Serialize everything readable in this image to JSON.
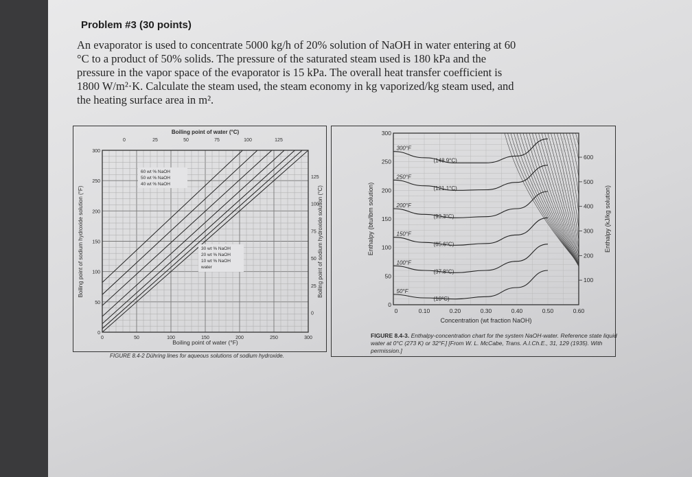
{
  "problem": {
    "title": "Problem #3 (30 points)",
    "text_lines": [
      "An evaporator is used to concentrate 5000 kg/h of 20% solution of NaOH in water entering at 60",
      "°C to a product of 50% solids. The pressure of the saturated steam used is 180 kPa and the",
      "pressure in the vapor space of the evaporator is 15 kPa. The overall heat transfer coefficient is",
      "1800 W/m²·K. Calculate the steam used, the steam economy in kg vaporized/kg steam used, and",
      "the heating surface area in m²."
    ]
  },
  "chart_data": [
    {
      "type": "line",
      "title": "Boiling point of water (°C)",
      "xlabel": "Boiling point of water (°F)",
      "ylabel": "Boiling point of sodium hydroxide solution (°F)",
      "y2label": "Boiling point of sodium hydroxide solution (°C)",
      "xlim": [
        0,
        300
      ],
      "ylim": [
        0,
        300
      ],
      "x_ticks": [
        "0",
        "50",
        "100",
        "150",
        "200",
        "250",
        "300"
      ],
      "y_ticks": [
        "0",
        "50",
        "100",
        "150",
        "200",
        "250",
        "300"
      ],
      "top_ticks": [
        "0",
        "25",
        "50",
        "75",
        "100",
        "125"
      ],
      "right_ticks": [
        "0",
        "25",
        "50",
        "75",
        "100",
        "125"
      ],
      "grid": true,
      "legend_upper": [
        "60 wt % NaOH",
        "50 wt % NaOH",
        "40 wt % NaOH"
      ],
      "legend_lower": [
        "30 wt % NaOH",
        "20 wt % NaOH",
        "10 wt % NaOH",
        "water"
      ],
      "series": [
        {
          "name": "water",
          "x": [
            0,
            300
          ],
          "y": [
            0,
            300
          ]
        },
        {
          "name": "10 wt % NaOH",
          "x": [
            0,
            300
          ],
          "y": [
            6,
            309
          ]
        },
        {
          "name": "20 wt % NaOH",
          "x": [
            0,
            300
          ],
          "y": [
            14,
            320
          ]
        },
        {
          "name": "30 wt % NaOH",
          "x": [
            0,
            300
          ],
          "y": [
            26,
            336
          ]
        },
        {
          "name": "40 wt % NaOH",
          "x": [
            0,
            300
          ],
          "y": [
            44,
            355
          ]
        },
        {
          "name": "50 wt % NaOH",
          "x": [
            0,
            300
          ],
          "y": [
            62,
            378
          ]
        },
        {
          "name": "60 wt % NaOH",
          "x": [
            0,
            300
          ],
          "y": [
            82,
            402
          ]
        }
      ],
      "caption_label": "FIGURE 8.4-2",
      "caption": "Dühring lines for aqueous solutions of sodium hydroxide."
    },
    {
      "type": "line",
      "xlabel": "Concentration (wt fraction NaOH)",
      "ylabel": "Enthalpy (btu/lbm solution)",
      "y2label": "Enthalpy (kJ/kg solution)",
      "xlim": [
        0,
        0.6
      ],
      "ylim": [
        0,
        300
      ],
      "x_ticks": [
        "0",
        "0.10",
        "0.20",
        "0.30",
        "0.40",
        "0.50",
        "0.60"
      ],
      "y_ticks": [
        "0",
        "50",
        "100",
        "150",
        "200",
        "250",
        "300"
      ],
      "right_ticks": [
        "100",
        "200",
        "300",
        "400",
        "500",
        "600"
      ],
      "series": [
        {
          "name": "50°F (10°C)",
          "x": [
            0,
            0.1,
            0.2,
            0.3,
            0.4,
            0.5
          ],
          "y": [
            18,
            12,
            10,
            14,
            30,
            60
          ]
        },
        {
          "name": "100°F (37.8°C)",
          "x": [
            0,
            0.1,
            0.2,
            0.3,
            0.4,
            0.5
          ],
          "y": [
            68,
            60,
            56,
            60,
            76,
            106
          ]
        },
        {
          "name": "150°F (65.6°C)",
          "x": [
            0,
            0.1,
            0.2,
            0.3,
            0.4,
            0.5
          ],
          "y": [
            118,
            109,
            104,
            107,
            122,
            152
          ]
        },
        {
          "name": "200°F (93.3°C)",
          "x": [
            0,
            0.1,
            0.2,
            0.3,
            0.4,
            0.5
          ],
          "y": [
            168,
            158,
            152,
            154,
            168,
            198
          ]
        },
        {
          "name": "250°F (121.1°C)",
          "x": [
            0,
            0.1,
            0.2,
            0.3,
            0.4,
            0.5
          ],
          "y": [
            218,
            208,
            200,
            201,
            214,
            244
          ]
        },
        {
          "name": "300°F (148.9°C)",
          "x": [
            0,
            0.1,
            0.2,
            0.3,
            0.4,
            0.5
          ],
          "y": [
            268,
            257,
            248,
            248,
            260,
            290
          ]
        }
      ],
      "caption_label": "FIGURE 8.4-3.",
      "caption": "Enthalpy-concentration chart for the system NaOH-water. Reference state liquid water at 0°C (273 K) or 32°F.] [From W. L. McCabe, Trans. A.I.Ch.E., 31, 129 (1935). With permission.]"
    }
  ]
}
